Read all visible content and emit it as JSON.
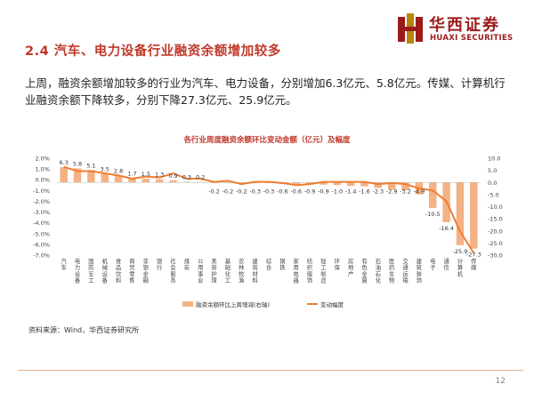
{
  "page": {
    "title": "2.4 汽车、电力设备行业融资余额增加较多",
    "intro": "上周，融资余额增加较多的行业为汽车、电力设备，分别增加6.3亿元、5.8亿元。传媒、计算机行业融资余额下降较多，分别下降27.3亿元、25.9亿元。",
    "source": "资料来源：Wind，华西证券研究所",
    "page_number": "12"
  },
  "logo": {
    "cn": "华西证券",
    "en": "HUAXI SECURITIES"
  },
  "colors": {
    "bar": "#f4b183",
    "line": "#ed7d31",
    "title_red": "#c0392b",
    "brand": "#9b1b1b"
  },
  "chart_data": {
    "type": "bar",
    "title": "各行业周度融资余额环比变动金额（亿元）及幅度",
    "categories": [
      "汽车",
      "电力设备",
      "国防军工",
      "机械设备",
      "食品饮料",
      "商贸零售",
      "非银金融",
      "银行",
      "社会服务",
      "煤炭",
      "公用事业",
      "美容护理",
      "基础化工",
      "农林牧渔",
      "建筑材料",
      "综合",
      "钢铁",
      "家用电器",
      "纺织服饰",
      "轻工制造",
      "环保",
      "房地产",
      "有色金属",
      "石油石化",
      "医药生物",
      "交通运输",
      "建筑装饰",
      "电子",
      "通信",
      "计算机",
      "传媒"
    ],
    "series": [
      {
        "name": "融资余额环比上周增减(右轴)",
        "kind": "bar",
        "axis": "right",
        "values": [
          6.3,
          5.8,
          5.1,
          3.5,
          2.8,
          1.7,
          1.5,
          1.3,
          0.9,
          0.3,
          0.2,
          -0.2,
          -0.2,
          -0.2,
          -0.3,
          -0.3,
          -0.6,
          -0.6,
          -0.9,
          -0.9,
          -1.0,
          -1.4,
          -1.6,
          -2.3,
          -2.9,
          -3.2,
          -4.9,
          -10.5,
          -16.4,
          -25.9,
          -27.3
        ]
      },
      {
        "name": "变动幅度",
        "kind": "line",
        "axis": "left",
        "values": [
          1.2,
          0.8,
          0.8,
          0.6,
          0.4,
          0.1,
          0.3,
          0.2,
          0.6,
          0.1,
          0.1,
          -0.2,
          -0.1,
          -0.4,
          -0.2,
          -0.2,
          -0.3,
          -0.5,
          -0.4,
          -0.2,
          -0.2,
          -0.2,
          -0.2,
          -0.4,
          -0.3,
          -0.4,
          -0.8,
          -1.0,
          -2.0,
          -4.8,
          -6.8
        ]
      }
    ],
    "data_labels": [
      "6.3",
      "5.8",
      "5.1",
      "3.5",
      "2.8",
      "1.7",
      "1.5",
      "1.3",
      "0.9",
      "0.3",
      "0.2",
      "-0.2",
      "-0.2",
      "-0.2",
      "-0.3",
      "-0.3",
      "-0.6",
      "-0.6",
      "-0.9",
      "-0.9",
      "-1.0",
      "-1.4",
      "-1.6",
      "-2.3",
      "-2.9",
      "-3.2",
      "-4.9",
      "-10.5",
      "-16.4",
      "-25.9",
      "-27.3"
    ],
    "y_left": {
      "ylim": [
        -7.0,
        2.0
      ],
      "ticks": [
        "2.0%",
        "1.0%",
        "0.0%",
        "-1.0%",
        "-2.0%",
        "-3.0%",
        "-4.0%",
        "-5.0%",
        "-6.0%",
        "-7.0%"
      ]
    },
    "y_right": {
      "ylim": [
        -30.0,
        10.0
      ],
      "ticks": [
        "10.0",
        "5.0",
        "0.0",
        "-5.0",
        "-10.0",
        "-15.0",
        "-20.0",
        "-25.0",
        "-30.0"
      ]
    },
    "legend_position": "bottom",
    "grid": false
  }
}
